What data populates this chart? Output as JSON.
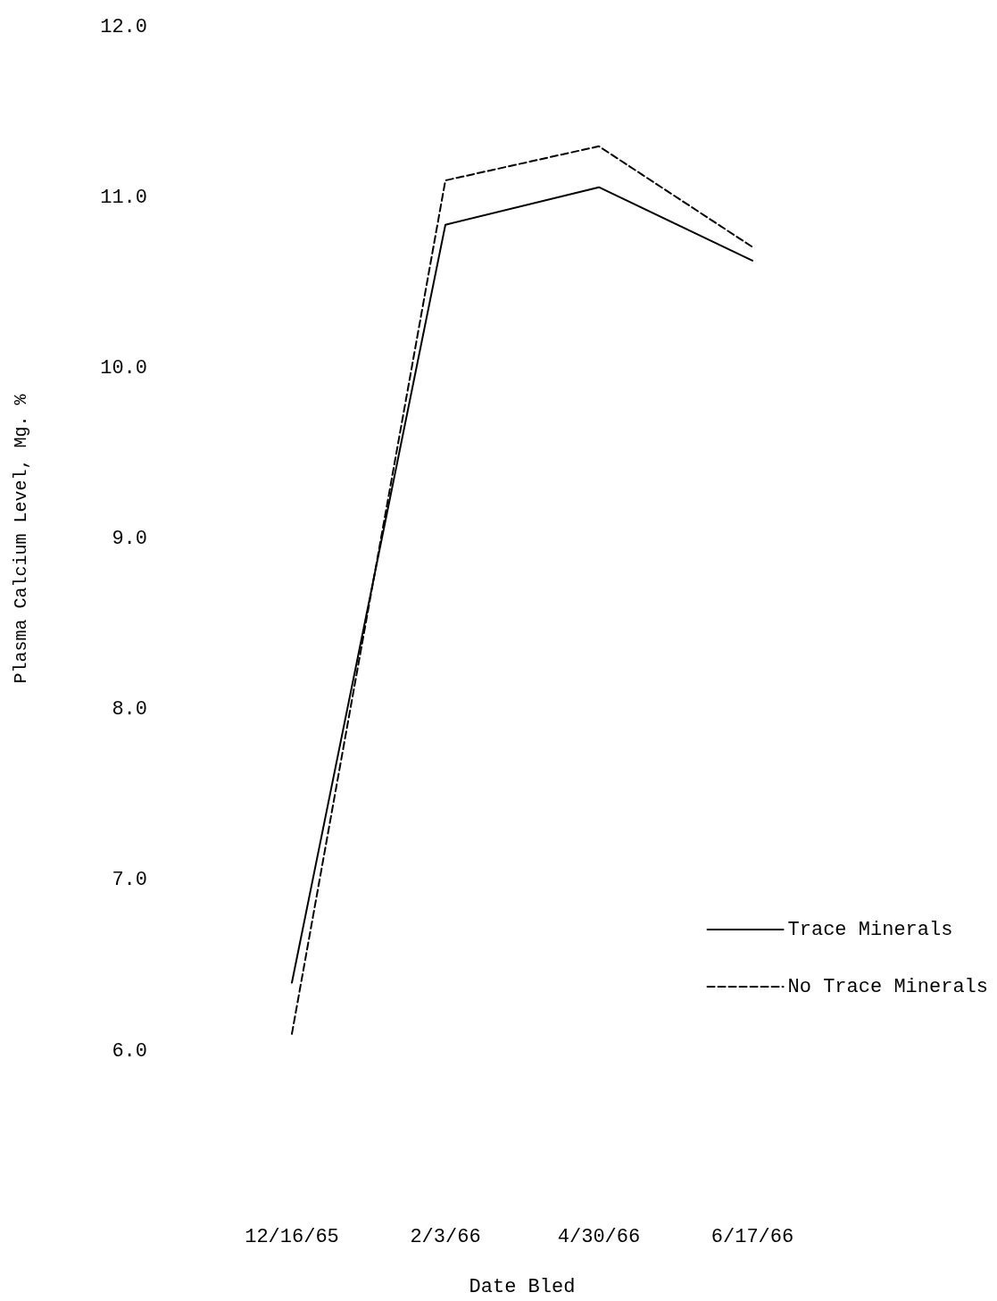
{
  "chart_data": {
    "type": "line",
    "xlabel": "Date Bled",
    "ylabel": "Plasma Calcium Level, Mg. %",
    "categories": [
      "12/16/65",
      "2/3/66",
      "4/30/66",
      "6/17/66"
    ],
    "series": [
      {
        "name": "Trace Minerals",
        "color": "#000000",
        "line_style": "solid",
        "values": [
          6.4,
          10.84,
          11.06,
          10.63
        ]
      },
      {
        "name": "No Trace Minerals",
        "color": "#000000",
        "line_style": "dashed",
        "values": [
          6.1,
          11.1,
          11.3,
          10.71
        ]
      }
    ],
    "ylim": [
      6,
      12
    ],
    "yticks": [
      {
        "value": 6,
        "label": "6.0"
      },
      {
        "value": 7,
        "label": "7.0"
      },
      {
        "value": 8,
        "label": "8.0"
      },
      {
        "value": 9,
        "label": "9.0"
      },
      {
        "value": 10,
        "label": "10.0"
      },
      {
        "value": 11,
        "label": "11.0"
      },
      {
        "value": 12,
        "label": "12.0"
      }
    ],
    "legend": "right",
    "marker": "none",
    "grid": false
  }
}
